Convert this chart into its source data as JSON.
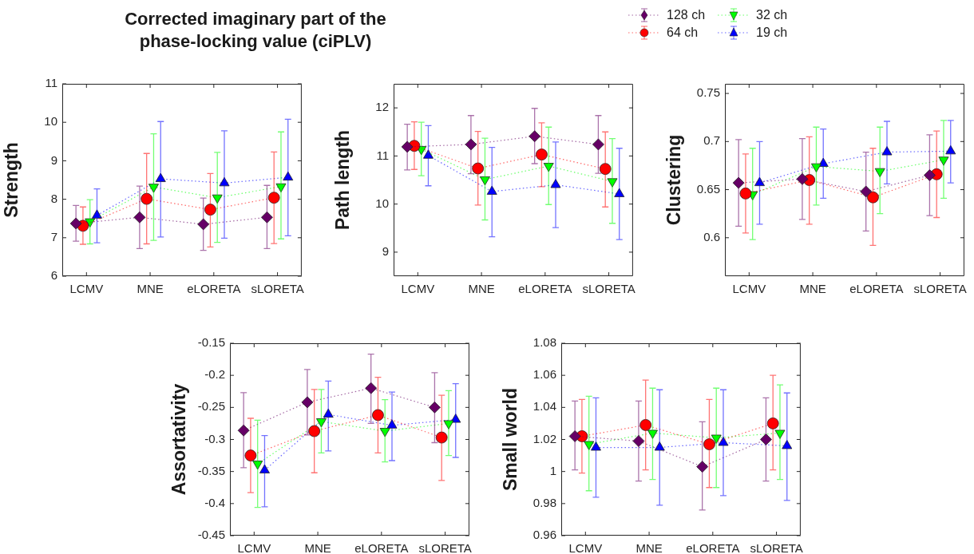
{
  "chart_data": [
    {
      "type": "line",
      "title": "Corrected imaginary part of the phase-locking value (ciPLV)",
      "legend": "top right",
      "categories": [
        "LCMV",
        "MNE",
        "eLORETA",
        "sLORETA"
      ],
      "ylabel": "Strength",
      "ylim": [
        6,
        11
      ],
      "yticks": [
        6,
        7,
        8,
        9,
        10,
        11
      ],
      "series": [
        {
          "name": "128 ch",
          "color": "#660066",
          "marker": "diamond",
          "line_style": "dotted",
          "values": [
            7.37,
            7.53,
            7.35,
            7.53
          ],
          "errors": [
            [
              6.91,
              7.84
            ],
            [
              6.72,
              8.34
            ],
            [
              6.67,
              8.03
            ],
            [
              6.72,
              8.36
            ]
          ]
        },
        {
          "name": "64 ch",
          "color": "#ff0000",
          "marker": "circle",
          "line_style": "dotted",
          "values": [
            7.31,
            8.01,
            7.73,
            8.04
          ],
          "errors": [
            [
              6.83,
              7.8
            ],
            [
              6.84,
              9.19
            ],
            [
              6.76,
              8.67
            ],
            [
              6.85,
              9.23
            ]
          ]
        },
        {
          "name": "32 ch",
          "color": "#00ff00",
          "marker": "triangle-down",
          "line_style": "dotted",
          "values": [
            7.42,
            8.32,
            8.04,
            8.33
          ],
          "errors": [
            [
              6.84,
              7.99
            ],
            [
              6.93,
              9.7
            ],
            [
              6.88,
              9.22
            ],
            [
              6.97,
              9.75
            ]
          ]
        },
        {
          "name": "19 ch",
          "color": "#0000ff",
          "marker": "triangle",
          "line_style": "dotted",
          "values": [
            7.58,
            8.53,
            8.42,
            8.57
          ],
          "errors": [
            [
              6.87,
              8.27
            ],
            [
              7.02,
              10.02
            ],
            [
              6.99,
              9.78
            ],
            [
              7.05,
              10.08
            ]
          ]
        }
      ]
    },
    {
      "type": "line",
      "categories": [
        "LCMV",
        "MNE",
        "eLORETA",
        "sLORETA"
      ],
      "ylabel": "Path length",
      "ylim": [
        8.5,
        12.5
      ],
      "yticks": [
        9,
        10,
        11,
        12
      ],
      "series": [
        {
          "color": "#660066",
          "marker": "diamond",
          "line_style": "dotted",
          "values": [
            11.19,
            11.24,
            11.41,
            11.24
          ],
          "errors": [
            [
              10.71,
              11.66
            ],
            [
              10.63,
              11.84
            ],
            [
              10.84,
              11.99
            ],
            [
              10.64,
              11.84
            ]
          ]
        },
        {
          "color": "#ff0000",
          "marker": "circle",
          "line_style": "dotted",
          "values": [
            11.21,
            10.74,
            11.03,
            10.73
          ],
          "errors": [
            [
              10.72,
              11.71
            ],
            [
              9.98,
              11.51
            ],
            [
              10.36,
              11.69
            ],
            [
              9.94,
              11.5
            ]
          ]
        },
        {
          "color": "#00ff00",
          "marker": "triangle-down",
          "line_style": "dotted",
          "values": [
            11.14,
            10.51,
            10.79,
            10.47
          ],
          "errors": [
            [
              10.59,
              11.7
            ],
            [
              9.67,
              11.37
            ],
            [
              9.99,
              11.6
            ],
            [
              9.6,
              11.36
            ]
          ]
        },
        {
          "color": "#0000ff",
          "marker": "triangle",
          "line_style": "dotted",
          "values": [
            11.01,
            10.26,
            10.4,
            10.21
          ],
          "errors": [
            [
              10.38,
              11.63
            ],
            [
              9.32,
              11.18
            ],
            [
              9.51,
              11.29
            ],
            [
              9.26,
              11.16
            ]
          ]
        }
      ]
    },
    {
      "type": "line",
      "categories": [
        "LCMV",
        "MNE",
        "eLORETA",
        "sLORETA"
      ],
      "ylabel": "Clustering",
      "ylim": [
        0.56,
        0.76
      ],
      "yticks": [
        0.6,
        0.65,
        0.7,
        0.75
      ],
      "series": [
        {
          "color": "#660066",
          "marker": "diamond",
          "line_style": "dotted",
          "values": [
            0.657,
            0.661,
            0.648,
            0.665
          ],
          "errors": [
            [
              0.612,
              0.702
            ],
            [
              0.619,
              0.703
            ],
            [
              0.607,
              0.689
            ],
            [
              0.623,
              0.707
            ]
          ]
        },
        {
          "color": "#ff0000",
          "marker": "circle",
          "line_style": "dotted",
          "values": [
            0.646,
            0.66,
            0.642,
            0.666
          ],
          "errors": [
            [
              0.605,
              0.687
            ],
            [
              0.614,
              0.705
            ],
            [
              0.592,
              0.693
            ],
            [
              0.621,
              0.711
            ]
          ]
        },
        {
          "color": "#00ff00",
          "marker": "triangle-down",
          "line_style": "dotted",
          "values": [
            0.645,
            0.674,
            0.669,
            0.681
          ],
          "errors": [
            [
              0.598,
              0.693
            ],
            [
              0.634,
              0.715
            ],
            [
              0.625,
              0.715
            ],
            [
              0.641,
              0.722
            ]
          ]
        },
        {
          "color": "#0000ff",
          "marker": "triangle",
          "line_style": "dotted",
          "values": [
            0.657,
            0.677,
            0.689,
            0.69
          ],
          "errors": [
            [
              0.614,
              0.7
            ],
            [
              0.641,
              0.713
            ],
            [
              0.656,
              0.721
            ],
            [
              0.657,
              0.722
            ]
          ]
        }
      ]
    },
    {
      "type": "line",
      "categories": [
        "LCMV",
        "MNE",
        "eLORETA",
        "sLORETA"
      ],
      "ylabel": "Assortativity",
      "ylim": [
        -0.45,
        -0.15
      ],
      "yticks": [
        -0.45,
        -0.4,
        -0.35,
        -0.3,
        -0.25,
        -0.2,
        -0.15
      ],
      "series": [
        {
          "color": "#660066",
          "marker": "diamond",
          "line_style": "dotted",
          "values": [
            -0.286,
            -0.242,
            -0.22,
            -0.25
          ],
          "errors": [
            [
              -0.344,
              -0.227
            ],
            [
              -0.293,
              -0.191
            ],
            [
              -0.275,
              -0.167
            ],
            [
              -0.305,
              -0.196
            ]
          ]
        },
        {
          "color": "#ff0000",
          "marker": "circle",
          "line_style": "dotted",
          "values": [
            -0.325,
            -0.287,
            -0.262,
            -0.297
          ],
          "errors": [
            [
              -0.383,
              -0.267
            ],
            [
              -0.352,
              -0.222
            ],
            [
              -0.321,
              -0.203
            ],
            [
              -0.364,
              -0.231
            ]
          ]
        },
        {
          "color": "#00ff00",
          "marker": "triangle-down",
          "line_style": "dotted",
          "values": [
            -0.338,
            -0.272,
            -0.287,
            -0.275
          ],
          "errors": [
            [
              -0.406,
              -0.27
            ],
            [
              -0.321,
              -0.222
            ],
            [
              -0.335,
              -0.238
            ],
            [
              -0.325,
              -0.224
            ]
          ]
        },
        {
          "color": "#0000ff",
          "marker": "triangle",
          "line_style": "dotted",
          "values": [
            -0.348,
            -0.261,
            -0.278,
            -0.269
          ],
          "errors": [
            [
              -0.405,
              -0.294
            ],
            [
              -0.318,
              -0.209
            ],
            [
              -0.333,
              -0.226
            ],
            [
              -0.328,
              -0.213
            ]
          ]
        }
      ]
    },
    {
      "type": "line",
      "categories": [
        "LCMV",
        "MNE",
        "eLORETA",
        "sLORETA"
      ],
      "ylabel": "Small world",
      "ylim": [
        0.96,
        1.08
      ],
      "yticks": [
        0.96,
        0.98,
        1,
        1.02,
        1.04,
        1.06,
        1.08
      ],
      "series": [
        {
          "color": "#660066",
          "marker": "diamond",
          "line_style": "dotted",
          "values": [
            1.022,
            1.019,
            1.003,
            1.02
          ],
          "errors": [
            [
              1.001,
              1.044
            ],
            [
              0.994,
              1.044
            ],
            [
              0.976,
              1.031
            ],
            [
              0.994,
              1.046
            ]
          ]
        },
        {
          "color": "#ff0000",
          "marker": "circle",
          "line_style": "dotted",
          "values": [
            1.022,
            1.029,
            1.017,
            1.03
          ],
          "errors": [
            [
              0.999,
              1.045
            ],
            [
              1.001,
              1.057
            ],
            [
              0.99,
              1.045
            ],
            [
              1.001,
              1.06
            ]
          ]
        },
        {
          "color": "#00ff00",
          "marker": "triangle-down",
          "line_style": "dotted",
          "values": [
            1.017,
            1.024,
            1.021,
            1.024
          ],
          "errors": [
            [
              0.988,
              1.047
            ],
            [
              0.995,
              1.052
            ],
            [
              0.99,
              1.052
            ],
            [
              0.995,
              1.054
            ]
          ]
        },
        {
          "color": "#0000ff",
          "marker": "triangle",
          "line_style": "dotted",
          "values": [
            1.015,
            1.015,
            1.018,
            1.016
          ],
          "errors": [
            [
              0.984,
              1.046
            ],
            [
              0.979,
              1.051
            ],
            [
              0.985,
              1.051
            ],
            [
              0.982,
              1.049
            ]
          ]
        }
      ]
    }
  ]
}
